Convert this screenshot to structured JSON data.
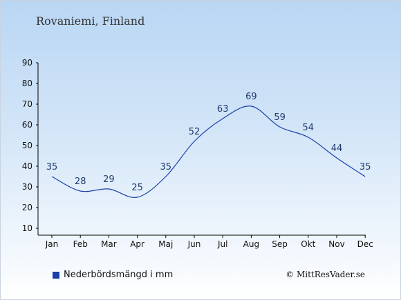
{
  "header": {
    "title": "Rovaniemi, Finland"
  },
  "legend": {
    "label": "Nederbördsmängd i mm",
    "color": "#1a3ea8"
  },
  "footer": {
    "copyright": "© MittResVader.se"
  },
  "chart_data": {
    "type": "line",
    "title": "Rovaniemi, Finland",
    "xlabel": "",
    "ylabel": "",
    "categories": [
      "Jan",
      "Feb",
      "Mar",
      "Apr",
      "Maj",
      "Jun",
      "Jul",
      "Aug",
      "Sep",
      "Okt",
      "Nov",
      "Dec"
    ],
    "series": [
      {
        "name": "Nederbördsmängd i mm",
        "values": [
          35,
          28,
          29,
          25,
          35,
          52,
          63,
          69,
          59,
          54,
          44,
          35
        ],
        "color": "#1a3ea8"
      }
    ],
    "yticks": [
      10,
      20,
      30,
      40,
      50,
      60,
      70,
      80,
      90
    ],
    "ylim": [
      10,
      90
    ],
    "grid": false,
    "legend_position": "bottom-left",
    "data_labels": true
  }
}
